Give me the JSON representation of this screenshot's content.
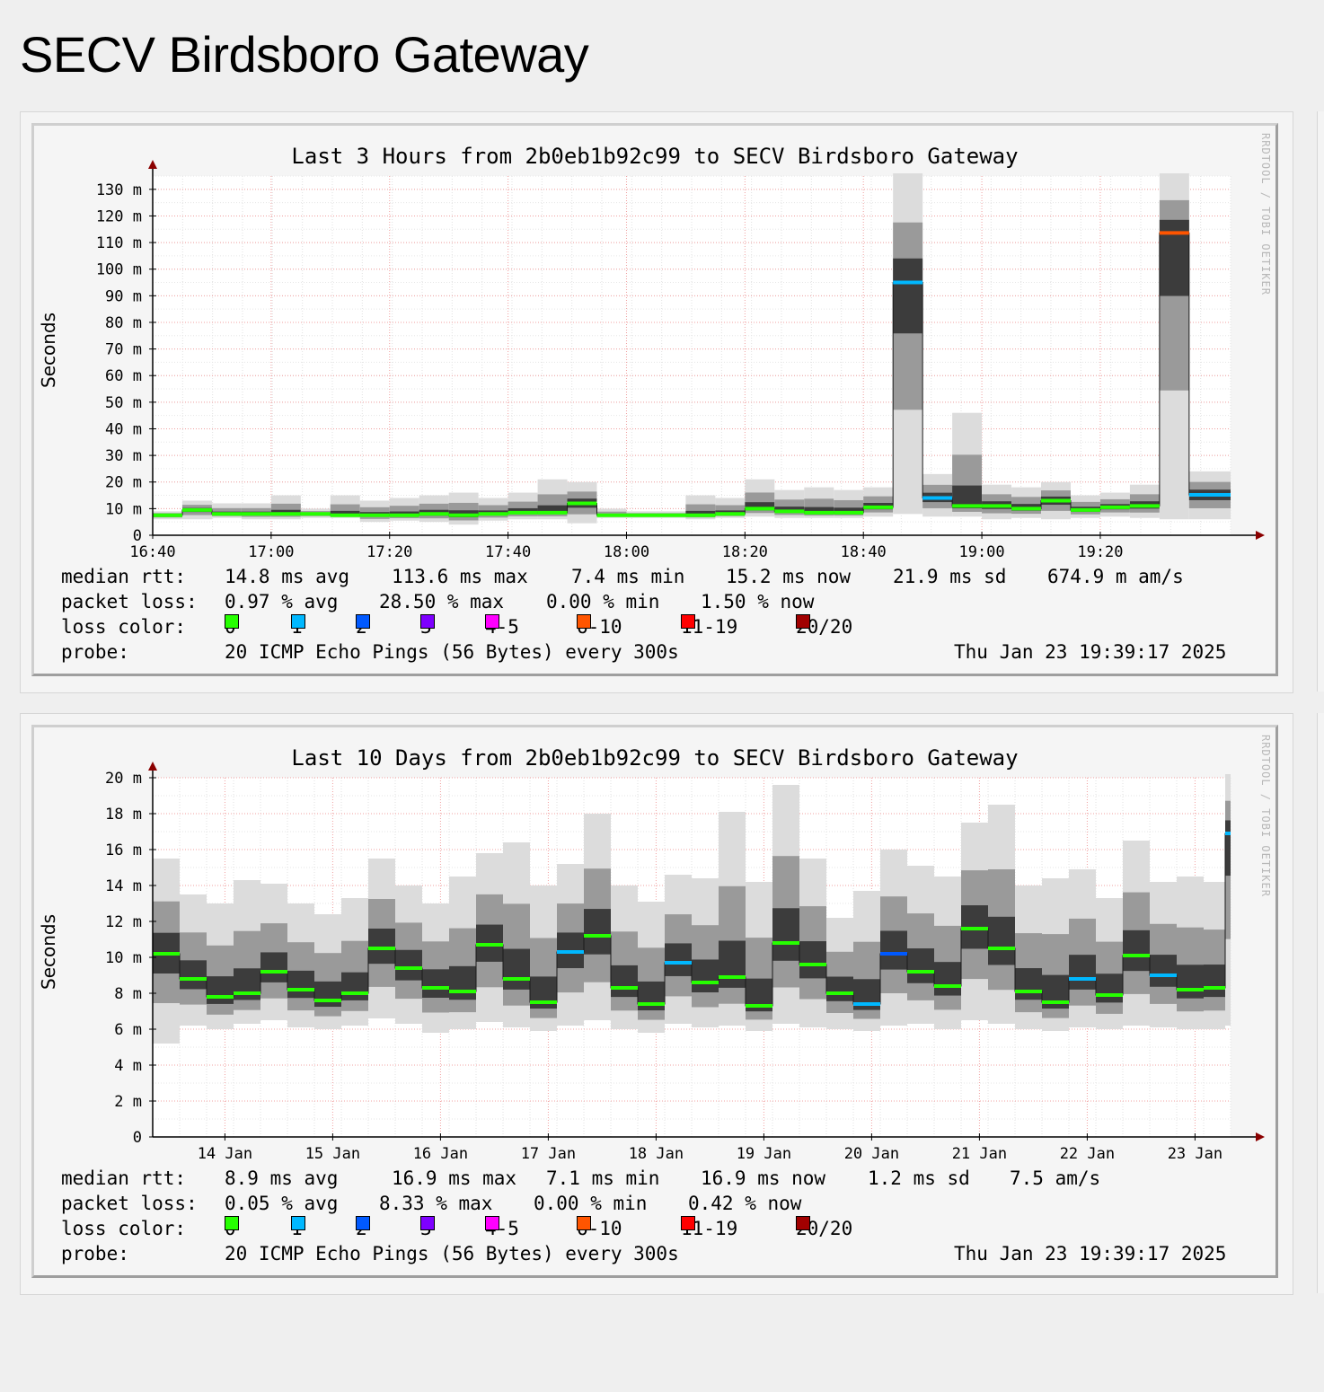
{
  "page": {
    "title": "SECV Birdsboro Gateway"
  },
  "panels": [
    {
      "title": "Last 3 Hours from 2b0eb1b92c99 to SECV Birdsboro Gateway",
      "ylabel": "Seconds",
      "watermark": "RRDTOOL / TOBI OETIKER",
      "stats": {
        "rtt_label": "median rtt:",
        "rtt": [
          "14.8 ms avg",
          "113.6 ms max",
          "7.4 ms min",
          "15.2 ms now",
          "21.9 ms sd",
          "674.9 m am/s"
        ],
        "loss_label": "packet loss:",
        "loss": [
          "0.97 % avg",
          "28.50 % max",
          "0.00 % min",
          "1.50 % now"
        ],
        "color_label": "loss color:",
        "probe_label": "probe:",
        "probe": "20 ICMP Echo Pings (56 Bytes) every 300s",
        "timestamp": "Thu Jan 23 19:39:17 2025"
      }
    },
    {
      "title": "Last 10 Days from 2b0eb1b92c99 to SECV Birdsboro Gateway",
      "ylabel": "Seconds",
      "watermark": "RRDTOOL / TOBI OETIKER",
      "stats": {
        "rtt_label": "median rtt:",
        "rtt": [
          "8.9 ms avg",
          "16.9 ms max",
          "7.1 ms min",
          "16.9 ms now",
          "1.2 ms sd",
          "7.5 am/s"
        ],
        "loss_label": "packet loss:",
        "loss": [
          "0.05 % avg",
          "8.33 % max",
          "0.00 % min",
          "0.42 % now"
        ],
        "color_label": "loss color:",
        "probe_label": "probe:",
        "probe": "20 ICMP Echo Pings (56 Bytes) every 300s",
        "timestamp": "Thu Jan 23 19:39:17 2025"
      }
    }
  ],
  "loss_colors": [
    {
      "label": "0",
      "color": "#26ff00"
    },
    {
      "label": "1",
      "color": "#00b8ff"
    },
    {
      "label": "2",
      "color": "#0059ff"
    },
    {
      "label": "3",
      "color": "#7e00ff"
    },
    {
      "label": "4-5",
      "color": "#ff00ff"
    },
    {
      "label": "6-10",
      "color": "#ff5500"
    },
    {
      "label": "11-19",
      "color": "#ff0000"
    },
    {
      "label": "20/20",
      "color": "#a10000"
    }
  ],
  "chart_data": [
    {
      "type": "area",
      "title": "Last 3 Hours from 2b0eb1b92c99 to SECV Birdsboro Gateway",
      "ylabel": "Seconds",
      "ylim": [
        0,
        135
      ],
      "y_unit": "m",
      "yticks": [
        0,
        10,
        20,
        30,
        40,
        50,
        60,
        70,
        80,
        90,
        100,
        110,
        120,
        130
      ],
      "ytick_labels": [
        "0",
        "10 m",
        "20 m",
        "30 m",
        "40 m",
        "50 m",
        "60 m",
        "70 m",
        "80 m",
        "90 m",
        "100 m",
        "110 m",
        "120 m",
        "130 m"
      ],
      "xticks": [
        "16:40",
        "17:00",
        "17:20",
        "17:40",
        "18:00",
        "18:20",
        "18:40",
        "19:00",
        "19:20"
      ],
      "xtick_minutes": [
        0,
        20,
        40,
        60,
        80,
        100,
        120,
        140,
        160
      ],
      "xlim_minutes": [
        0,
        182
      ],
      "grid": true,
      "series": [
        {
          "name": "median rtt",
          "x_minutes": [
            0,
            5,
            10,
            15,
            20,
            25,
            30,
            35,
            40,
            45,
            50,
            55,
            60,
            65,
            70,
            75,
            80,
            85,
            90,
            95,
            100,
            105,
            110,
            115,
            120,
            125,
            130,
            135,
            140,
            145,
            150,
            155,
            160,
            165,
            170,
            175
          ],
          "median": [
            7.5,
            9.5,
            8.0,
            8.0,
            8.0,
            8.0,
            7.5,
            7.5,
            7.5,
            8.0,
            7.5,
            8.0,
            8.5,
            8.5,
            12.0,
            7.5,
            7.5,
            7.5,
            7.5,
            8.0,
            10.0,
            9.0,
            8.5,
            8.5,
            10.5,
            95.0,
            14.0,
            11.0,
            11.0,
            10.0,
            13.0,
            9.5,
            10.5,
            11.0,
            113.6,
            15.2
          ],
          "min": [
            6.0,
            6.0,
            6.5,
            6.0,
            6.0,
            6.5,
            6.5,
            5.0,
            5.5,
            5.0,
            4.0,
            5.5,
            6.0,
            6.0,
            4.5,
            6.5,
            6.5,
            6.5,
            6.0,
            6.5,
            7.0,
            6.5,
            6.5,
            6.5,
            7.0,
            8.0,
            7.0,
            7.0,
            6.0,
            6.5,
            6.0,
            6.5,
            7.0,
            6.5,
            6.0,
            6.0
          ],
          "max": [
            9,
            13,
            12,
            12,
            15,
            10,
            15,
            13,
            14,
            15,
            16,
            14,
            16,
            21,
            20,
            10,
            9,
            9,
            15,
            14,
            21,
            17,
            18,
            17,
            18,
            136,
            23,
            46,
            19,
            18,
            20,
            15,
            16,
            19,
            136,
            24
          ],
          "loss_color": [
            "0",
            "0",
            "0",
            "0",
            "0",
            "0",
            "0",
            "0",
            "0",
            "0",
            "0",
            "0",
            "0",
            "0",
            "0",
            "0",
            "0",
            "0",
            "0",
            "0",
            "0",
            "0",
            "0",
            "0",
            "0",
            "1",
            "1",
            "0",
            "0",
            "0",
            "0",
            "0",
            "0",
            "0",
            "6-10",
            "1"
          ]
        }
      ]
    },
    {
      "type": "area",
      "title": "Last 10 Days from 2b0eb1b92c99 to SECV Birdsboro Gateway",
      "ylabel": "Seconds",
      "ylim": [
        0,
        20
      ],
      "y_unit": "m",
      "yticks": [
        0,
        2,
        4,
        6,
        8,
        10,
        12,
        14,
        16,
        18,
        20
      ],
      "ytick_labels": [
        "0",
        "2 m",
        "4 m",
        "6 m",
        "8 m",
        "10 m",
        "12 m",
        "14 m",
        "16 m",
        "18 m",
        "20 m"
      ],
      "xticks": [
        "14 Jan",
        "15 Jan",
        "16 Jan",
        "17 Jan",
        "18 Jan",
        "19 Jan",
        "20 Jan",
        "21 Jan",
        "22 Jan",
        "23 Jan"
      ],
      "xtick_days": [
        0.67,
        1.67,
        2.67,
        3.67,
        4.67,
        5.67,
        6.67,
        7.67,
        8.67,
        9.67
      ],
      "xlim_days": [
        0,
        10
      ],
      "grid": true,
      "series": [
        {
          "name": "median rtt",
          "x_days": [
            0.0,
            0.25,
            0.5,
            0.75,
            1.0,
            1.25,
            1.5,
            1.75,
            2.0,
            2.25,
            2.5,
            2.75,
            3.0,
            3.25,
            3.5,
            3.75,
            4.0,
            4.25,
            4.5,
            4.75,
            5.0,
            5.25,
            5.5,
            5.75,
            6.0,
            6.25,
            6.5,
            6.75,
            7.0,
            7.25,
            7.5,
            7.75,
            8.0,
            8.25,
            8.5,
            8.75,
            9.0,
            9.25,
            9.5,
            9.75,
            9.95
          ],
          "median": [
            10.2,
            8.8,
            7.8,
            8.0,
            9.2,
            8.2,
            7.6,
            8.0,
            10.5,
            9.4,
            8.3,
            8.1,
            10.7,
            8.8,
            7.5,
            10.3,
            11.2,
            8.3,
            7.4,
            9.7,
            8.6,
            8.9,
            7.3,
            10.8,
            9.6,
            8.0,
            7.4,
            10.2,
            9.2,
            8.4,
            11.6,
            10.5,
            8.1,
            7.5,
            8.8,
            7.9,
            10.1,
            9.0,
            8.2,
            8.3,
            16.9
          ],
          "min": [
            5.2,
            6.2,
            6.0,
            6.3,
            6.5,
            6.1,
            6.0,
            6.2,
            6.6,
            6.3,
            5.8,
            6.0,
            6.4,
            6.1,
            5.9,
            6.2,
            6.5,
            6.0,
            5.8,
            6.3,
            6.1,
            6.2,
            5.9,
            6.3,
            6.1,
            6.0,
            5.9,
            6.2,
            6.3,
            6.0,
            6.5,
            6.3,
            6.0,
            5.9,
            6.1,
            6.0,
            6.2,
            6.1,
            6.0,
            6.0,
            6.2
          ],
          "max": [
            15.5,
            13.5,
            13.0,
            14.3,
            14.1,
            13.0,
            12.4,
            13.3,
            15.5,
            14.0,
            13.0,
            14.5,
            15.8,
            16.4,
            14.0,
            15.2,
            18.0,
            14.0,
            13.1,
            14.6,
            14.4,
            18.1,
            14.2,
            19.6,
            15.5,
            12.2,
            13.7,
            16.0,
            15.1,
            14.5,
            17.5,
            18.5,
            14.0,
            14.4,
            14.9,
            13.3,
            16.5,
            14.2,
            14.5,
            14.2,
            20.2
          ],
          "loss_color": [
            "0",
            "0",
            "0",
            "0",
            "0",
            "0",
            "0",
            "0",
            "0",
            "0",
            "0",
            "0",
            "0",
            "0",
            "0",
            "1",
            "0",
            "0",
            "0",
            "1",
            "0",
            "0",
            "0",
            "0",
            "0",
            "0",
            "1",
            "2",
            "0",
            "0",
            "0",
            "0",
            "0",
            "0",
            "1",
            "0",
            "0",
            "1",
            "0",
            "0",
            "1"
          ]
        }
      ]
    }
  ]
}
